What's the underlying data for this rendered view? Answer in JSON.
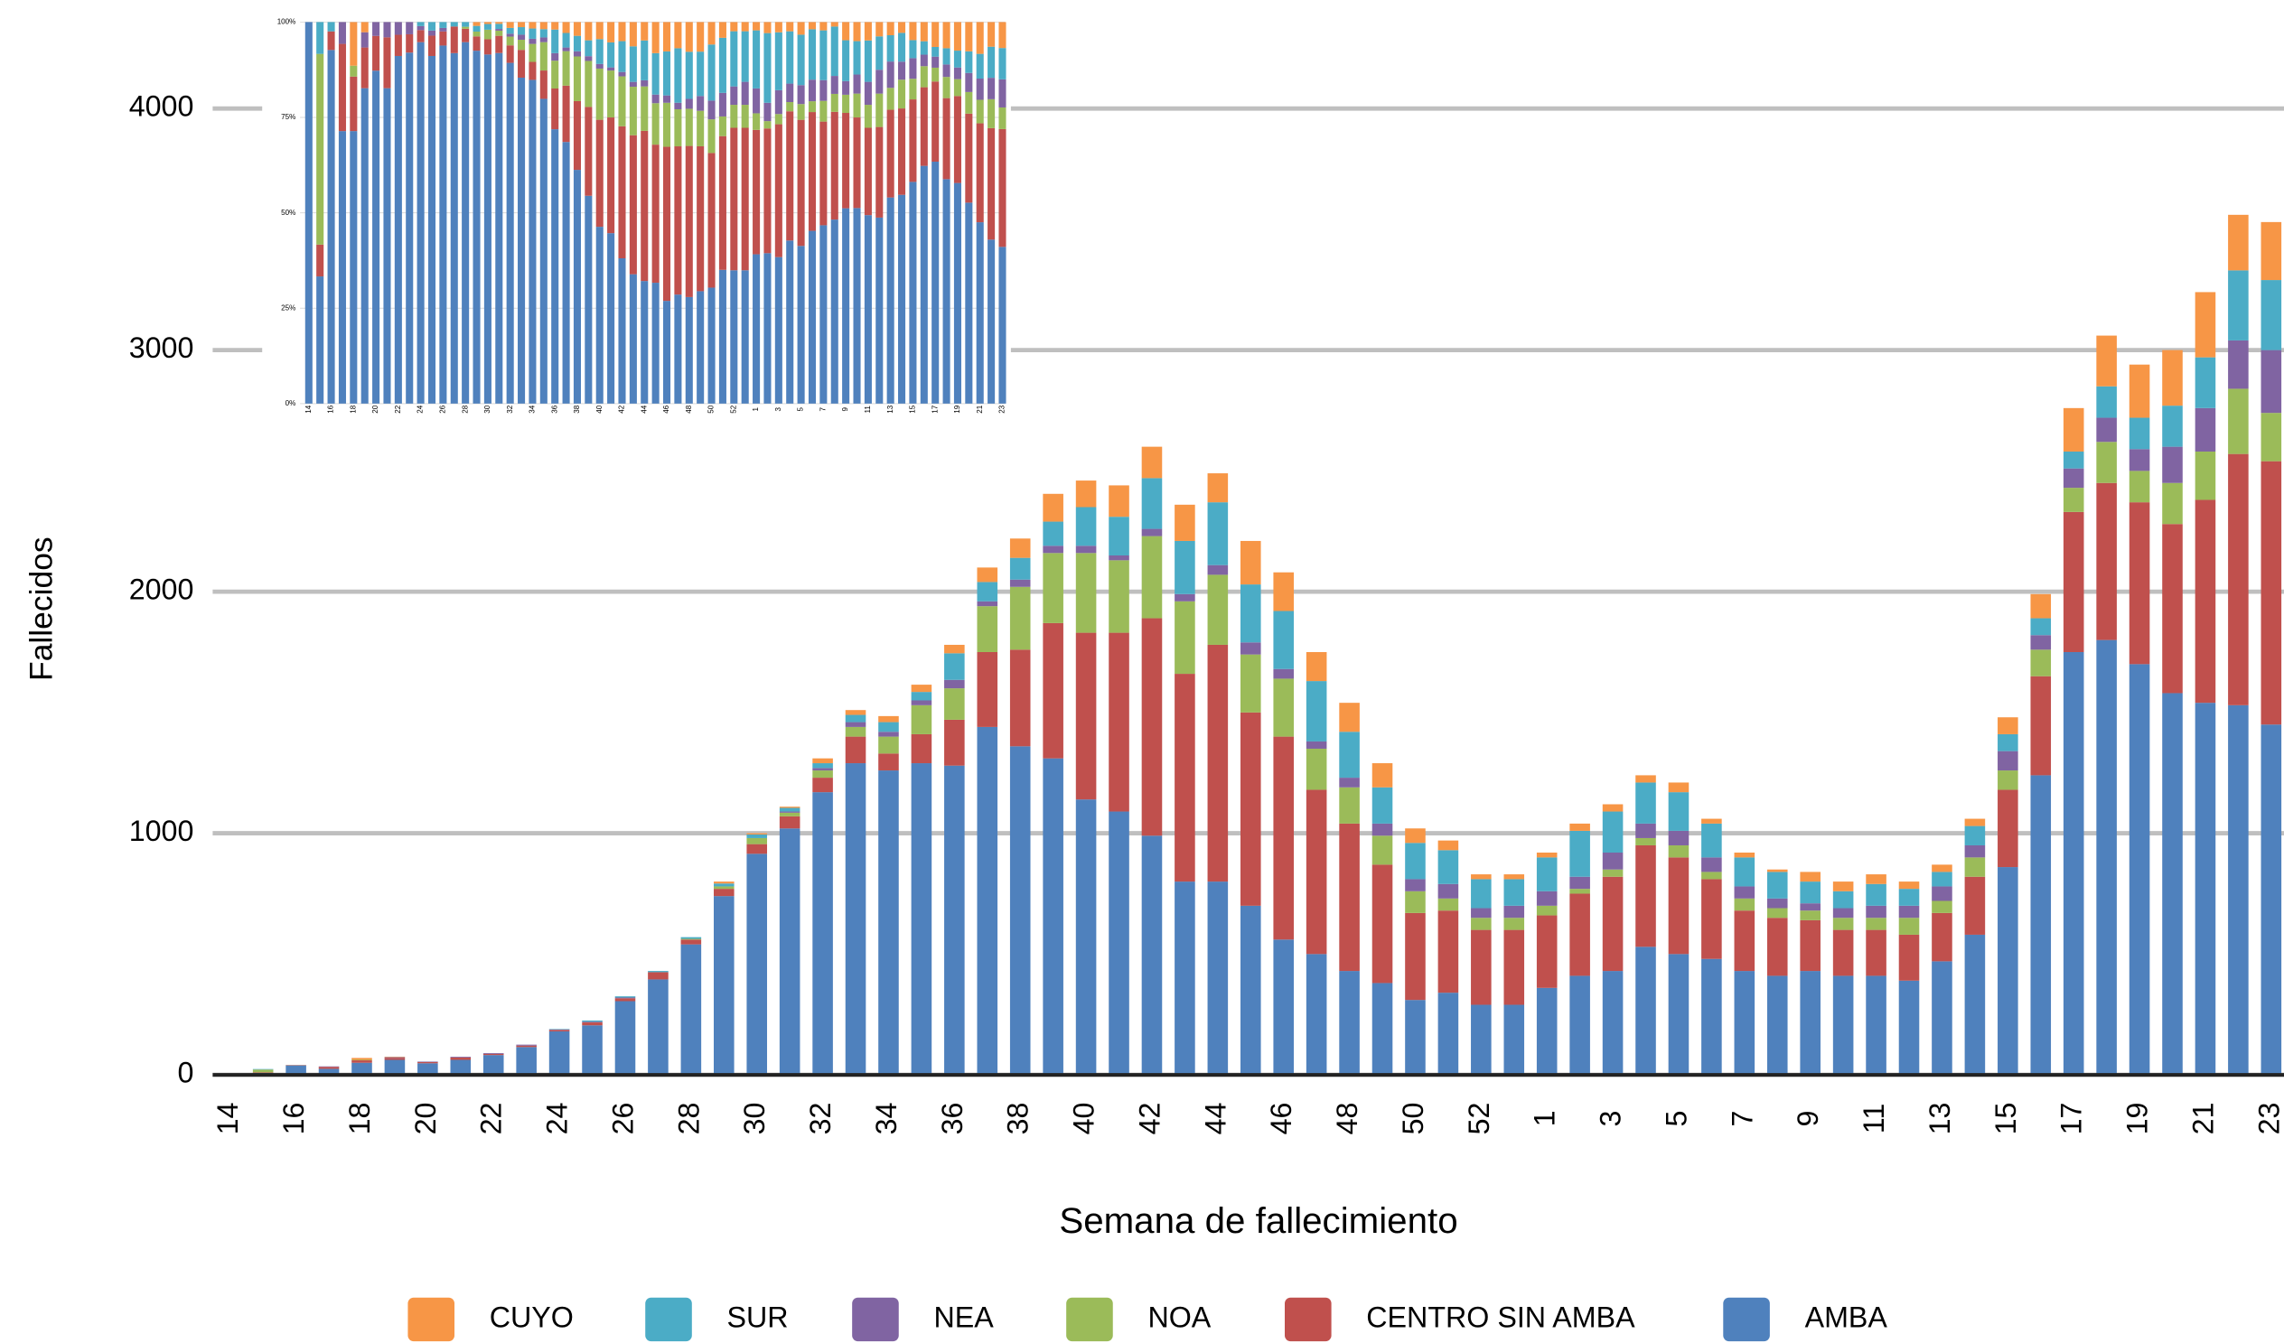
{
  "chart_data": [
    {
      "type": "bar",
      "stacking": "normal",
      "y_label": "Fallecidos",
      "x_label": "Semana de fallecimiento",
      "legend_position": "bottom",
      "grid": true,
      "ylim": [
        0,
        4400
      ],
      "yticks": [
        0,
        1000,
        2000,
        3000,
        4000
      ],
      "categories": [
        "14",
        null,
        "16",
        null,
        "18",
        null,
        "20",
        null,
        "22",
        null,
        "24",
        null,
        "26",
        null,
        "28",
        null,
        "30",
        null,
        "32",
        null,
        "34",
        null,
        "36",
        null,
        "38",
        null,
        "40",
        null,
        "42",
        null,
        "44",
        null,
        "46",
        null,
        "48",
        null,
        "50",
        null,
        "52",
        null,
        "1",
        null,
        "3",
        null,
        "5",
        null,
        "7",
        null,
        "9",
        null,
        "11",
        null,
        "13",
        null,
        "15",
        null,
        "17",
        null,
        "19",
        null,
        "21",
        null,
        "23"
      ],
      "series": [
        {
          "name": "AMBA",
          "color": "#4f81bd",
          "values": [
            5,
            8,
            38,
            25,
            50,
            62,
            48,
            62,
            82,
            115,
            180,
            205,
            305,
            395,
            540,
            740,
            915,
            1020,
            1170,
            1290,
            1260,
            1290,
            1280,
            1440,
            1360,
            1310,
            1140,
            1090,
            990,
            800,
            800,
            700,
            560,
            500,
            430,
            380,
            310,
            340,
            290,
            290,
            360,
            410,
            430,
            530,
            500,
            480,
            430,
            410,
            430,
            410,
            410,
            390,
            470,
            580,
            860,
            1240,
            1750,
            1800,
            1700,
            1580,
            1540,
            1530,
            1450
          ]
        },
        {
          "name": "CENTRO SIN AMBA",
          "color": "#c0504d",
          "values": [
            0,
            2,
            2,
            8,
            10,
            8,
            5,
            10,
            5,
            6,
            6,
            12,
            12,
            30,
            20,
            30,
            40,
            50,
            60,
            110,
            70,
            120,
            190,
            310,
            400,
            560,
            690,
            740,
            900,
            860,
            980,
            800,
            840,
            680,
            610,
            490,
            360,
            340,
            310,
            310,
            300,
            340,
            390,
            420,
            400,
            330,
            250,
            240,
            210,
            190,
            190,
            190,
            200,
            240,
            320,
            410,
            580,
            650,
            670,
            700,
            840,
            1040,
            1090
          ]
        },
        {
          "name": "NOA",
          "color": "#9bbb59",
          "values": [
            0,
            12,
            0,
            0,
            2,
            0,
            0,
            0,
            0,
            0,
            0,
            0,
            0,
            0,
            3,
            10,
            25,
            15,
            30,
            40,
            70,
            120,
            130,
            190,
            260,
            290,
            330,
            300,
            340,
            300,
            290,
            240,
            240,
            170,
            150,
            120,
            90,
            50,
            50,
            50,
            40,
            20,
            30,
            30,
            50,
            30,
            50,
            40,
            40,
            50,
            50,
            70,
            50,
            80,
            80,
            110,
            100,
            170,
            130,
            170,
            200,
            270,
            200
          ]
        },
        {
          "name": "NEA",
          "color": "#8064a2",
          "values": [
            0,
            0,
            0,
            2,
            0,
            3,
            2,
            3,
            3,
            4,
            2,
            3,
            3,
            0,
            0,
            0,
            0,
            5,
            10,
            20,
            20,
            20,
            35,
            20,
            30,
            30,
            30,
            20,
            30,
            30,
            40,
            50,
            40,
            30,
            40,
            50,
            50,
            60,
            40,
            50,
            60,
            50,
            70,
            60,
            60,
            60,
            50,
            40,
            30,
            40,
            50,
            50,
            60,
            50,
            80,
            60,
            80,
            100,
            90,
            150,
            180,
            200,
            260
          ]
        },
        {
          "name": "SUR",
          "color": "#4bacc6",
          "values": [
            0,
            2,
            1,
            0,
            0,
            0,
            0,
            0,
            0,
            0,
            2,
            5,
            5,
            5,
            7,
            12,
            15,
            15,
            20,
            30,
            40,
            35,
            110,
            80,
            90,
            100,
            160,
            160,
            210,
            220,
            260,
            240,
            240,
            250,
            190,
            150,
            150,
            140,
            120,
            110,
            140,
            190,
            170,
            170,
            160,
            140,
            120,
            110,
            90,
            70,
            90,
            70,
            60,
            80,
            70,
            70,
            70,
            130,
            130,
            170,
            210,
            290,
            290
          ]
        },
        {
          "name": "CUYO",
          "color": "#f79646",
          "values": [
            0,
            0,
            0,
            0,
            8,
            2,
            0,
            0,
            0,
            0,
            0,
            0,
            0,
            0,
            0,
            8,
            5,
            5,
            20,
            20,
            25,
            30,
            35,
            60,
            80,
            115,
            110,
            130,
            130,
            150,
            120,
            180,
            160,
            120,
            120,
            100,
            60,
            40,
            20,
            20,
            20,
            30,
            30,
            30,
            40,
            20,
            20,
            10,
            40,
            40,
            40,
            30,
            30,
            30,
            70,
            100,
            180,
            210,
            220,
            230,
            270,
            230,
            240
          ]
        }
      ]
    },
    {
      "type": "bar",
      "stacking": "percent",
      "grid": true,
      "ylim": [
        0,
        100
      ],
      "yticks": [
        {
          "value": 0,
          "label": "0%"
        },
        {
          "value": 25,
          "label": "25%"
        },
        {
          "value": 50,
          "label": "50%"
        },
        {
          "value": 75,
          "label": "75%"
        },
        {
          "value": 100,
          "label": "100%"
        }
      ],
      "categories": [
        "14",
        null,
        "16",
        null,
        "18",
        null,
        "20",
        null,
        "22",
        null,
        "24",
        null,
        "26",
        null,
        "28",
        null,
        "30",
        null,
        "32",
        null,
        "34",
        null,
        "36",
        null,
        "38",
        null,
        "40",
        null,
        "42",
        null,
        "44",
        null,
        "46",
        null,
        "48",
        null,
        "50",
        null,
        "52",
        null,
        "1",
        null,
        "3",
        null,
        "5",
        null,
        "7",
        null,
        "9",
        null,
        "11",
        null,
        "13",
        null,
        "15",
        null,
        "17",
        null,
        "19",
        null,
        "21",
        null,
        "23"
      ],
      "series": [
        {
          "name": "AMBA",
          "color": "#4f81bd",
          "values": [
            5,
            8,
            38,
            25,
            50,
            62,
            48,
            62,
            82,
            115,
            180,
            205,
            305,
            395,
            540,
            740,
            915,
            1020,
            1170,
            1290,
            1260,
            1290,
            1280,
            1440,
            1360,
            1310,
            1140,
            1090,
            990,
            800,
            800,
            700,
            560,
            500,
            430,
            380,
            310,
            340,
            290,
            290,
            360,
            410,
            430,
            530,
            500,
            480,
            430,
            410,
            430,
            410,
            410,
            390,
            470,
            580,
            860,
            1240,
            1750,
            1800,
            1700,
            1580,
            1540,
            1530,
            1450
          ]
        },
        {
          "name": "CENTRO SIN AMBA",
          "color": "#c0504d",
          "values": [
            0,
            2,
            2,
            8,
            10,
            8,
            5,
            10,
            5,
            6,
            6,
            12,
            12,
            30,
            20,
            30,
            40,
            50,
            60,
            110,
            70,
            120,
            190,
            310,
            400,
            560,
            690,
            740,
            900,
            860,
            980,
            800,
            840,
            680,
            610,
            490,
            360,
            340,
            310,
            310,
            300,
            340,
            390,
            420,
            400,
            330,
            250,
            240,
            210,
            190,
            190,
            190,
            200,
            240,
            320,
            410,
            580,
            650,
            670,
            700,
            840,
            1040,
            1090
          ]
        },
        {
          "name": "NOA",
          "color": "#9bbb59",
          "values": [
            0,
            12,
            0,
            0,
            2,
            0,
            0,
            0,
            0,
            0,
            0,
            0,
            0,
            0,
            3,
            10,
            25,
            15,
            30,
            40,
            70,
            120,
            130,
            190,
            260,
            290,
            330,
            300,
            340,
            300,
            290,
            240,
            240,
            170,
            150,
            120,
            90,
            50,
            50,
            50,
            40,
            20,
            30,
            30,
            50,
            30,
            50,
            40,
            40,
            50,
            50,
            70,
            50,
            80,
            80,
            110,
            100,
            170,
            130,
            170,
            200,
            270,
            200
          ]
        },
        {
          "name": "NEA",
          "color": "#8064a2",
          "values": [
            0,
            0,
            0,
            2,
            0,
            3,
            2,
            3,
            3,
            4,
            2,
            3,
            3,
            0,
            0,
            0,
            0,
            5,
            10,
            20,
            20,
            20,
            35,
            20,
            30,
            30,
            30,
            20,
            30,
            30,
            40,
            50,
            40,
            30,
            40,
            50,
            50,
            60,
            40,
            50,
            60,
            50,
            70,
            60,
            60,
            60,
            50,
            40,
            30,
            40,
            50,
            50,
            60,
            50,
            80,
            60,
            80,
            100,
            90,
            150,
            180,
            200,
            260
          ]
        },
        {
          "name": "SUR",
          "color": "#4bacc6",
          "values": [
            0,
            2,
            1,
            0,
            0,
            0,
            0,
            0,
            0,
            0,
            2,
            5,
            5,
            5,
            7,
            12,
            15,
            15,
            20,
            30,
            40,
            35,
            110,
            80,
            90,
            100,
            160,
            160,
            210,
            220,
            260,
            240,
            240,
            250,
            190,
            150,
            150,
            140,
            120,
            110,
            140,
            190,
            170,
            170,
            160,
            140,
            120,
            110,
            90,
            70,
            90,
            70,
            60,
            80,
            70,
            70,
            70,
            130,
            130,
            170,
            210,
            290,
            290
          ]
        },
        {
          "name": "CUYO",
          "color": "#f79646",
          "values": [
            0,
            0,
            0,
            0,
            8,
            2,
            0,
            0,
            0,
            0,
            0,
            0,
            0,
            0,
            0,
            8,
            5,
            5,
            20,
            20,
            25,
            30,
            35,
            60,
            80,
            115,
            110,
            130,
            130,
            150,
            120,
            180,
            160,
            120,
            120,
            100,
            60,
            40,
            20,
            20,
            20,
            30,
            30,
            30,
            40,
            20,
            20,
            10,
            40,
            40,
            40,
            30,
            30,
            30,
            70,
            100,
            180,
            210,
            220,
            230,
            270,
            230,
            240
          ]
        }
      ]
    }
  ]
}
